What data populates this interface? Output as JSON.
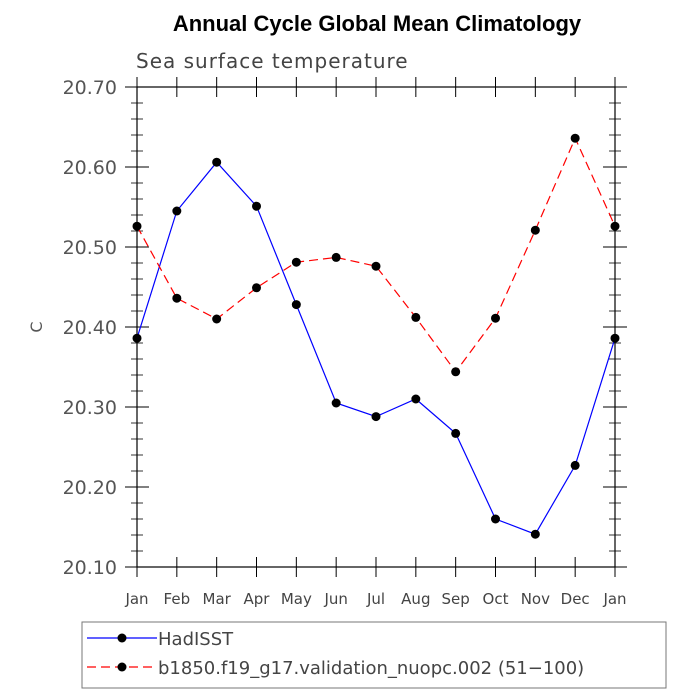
{
  "chart_data": {
    "type": "line",
    "title": "Annual Cycle Global Mean Climatology",
    "subtitle": "Sea surface temperature",
    "xlabel": "",
    "ylabel": "C",
    "categories": [
      "Jan",
      "Feb",
      "Mar",
      "Apr",
      "May",
      "Jun",
      "Jul",
      "Aug",
      "Sep",
      "Oct",
      "Nov",
      "Dec",
      "Jan"
    ],
    "ylim": [
      20.1,
      20.7
    ],
    "yticks": [
      "20.10",
      "20.20",
      "20.30",
      "20.40",
      "20.50",
      "20.60",
      "20.70"
    ],
    "series": [
      {
        "name": "HadISST",
        "color": "#0000ff",
        "dash": "solid",
        "values": [
          20.386,
          20.545,
          20.606,
          20.551,
          20.428,
          20.305,
          20.288,
          20.31,
          20.267,
          20.16,
          20.141,
          20.227,
          20.386
        ]
      },
      {
        "name": "b1850.f19_g17.validation_nuopc.002 (51−100)",
        "color": "#ff0000",
        "dash": "dashed",
        "values": [
          20.526,
          20.436,
          20.41,
          20.449,
          20.481,
          20.487,
          20.476,
          20.412,
          20.344,
          20.411,
          20.521,
          20.636,
          20.526
        ]
      }
    ],
    "legend_position": "bottom"
  }
}
